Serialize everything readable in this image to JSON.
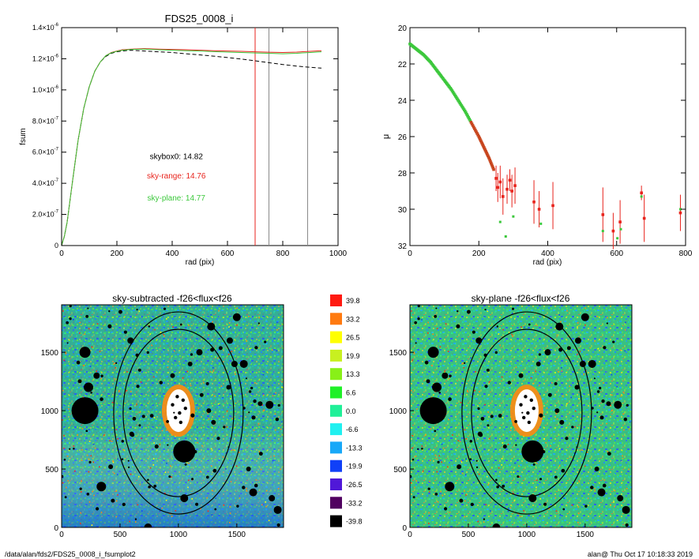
{
  "footer": {
    "path": "/data/alan/fds2/FDS25_0008_i_fsumplot2",
    "stamp": "alan@  Thu Oct 17 10:18:33 2019"
  },
  "chart_data": [
    {
      "type": "line",
      "title": "FDS25_0008_i",
      "xlabel": "rad (pix)",
      "ylabel": "fsum",
      "xlim": [
        0,
        1000
      ],
      "ylim": [
        0,
        1.4e-06
      ],
      "x_ticks": [
        "0",
        "200",
        "400",
        "600",
        "800",
        "1000"
      ],
      "y_ticks": [
        {
          "mantissa": "0",
          "exp": ""
        },
        {
          "mantissa": "2.0×10",
          "exp": "-7"
        },
        {
          "mantissa": "4.0×10",
          "exp": "-7"
        },
        {
          "mantissa": "6.0×10",
          "exp": "-7"
        },
        {
          "mantissa": "8.0×10",
          "exp": "-7"
        },
        {
          "mantissa": "1.0×10",
          "exp": "-6"
        },
        {
          "mantissa": "1.2×10",
          "exp": "-6"
        },
        {
          "mantissa": "1.4×10",
          "exp": "-6"
        }
      ],
      "x": [
        0,
        10,
        20,
        40,
        60,
        80,
        100,
        120,
        140,
        160,
        180,
        200,
        220,
        250,
        300,
        350,
        400,
        450,
        500,
        550,
        600,
        650,
        700,
        750,
        800,
        850,
        900,
        940
      ],
      "series": [
        {
          "color": "#000000",
          "style": "dashed",
          "values": [
            0,
            6e-08,
            1.5e-07,
            4.2e-07,
            6.8e-07,
            8.8e-07,
            1.02e-06,
            1.12e-06,
            1.18e-06,
            1.215e-06,
            1.235e-06,
            1.245e-06,
            1.25e-06,
            1.255e-06,
            1.25e-06,
            1.245e-06,
            1.24e-06,
            1.232e-06,
            1.225e-06,
            1.217e-06,
            1.208e-06,
            1.198e-06,
            1.187e-06,
            1.175e-06,
            1.163e-06,
            1.153e-06,
            1.145e-06,
            1.14e-06
          ]
        },
        {
          "color": "#e8231c",
          "style": "solid",
          "values": [
            0,
            6e-08,
            1.5e-07,
            4.2e-07,
            6.8e-07,
            8.8e-07,
            1.02e-06,
            1.12e-06,
            1.18e-06,
            1.22e-06,
            1.24e-06,
            1.25e-06,
            1.258e-06,
            1.262e-06,
            1.265e-06,
            1.262e-06,
            1.26e-06,
            1.258e-06,
            1.255e-06,
            1.252e-06,
            1.25e-06,
            1.248e-06,
            1.245e-06,
            1.242e-06,
            1.24e-06,
            1.243e-06,
            1.248e-06,
            1.252e-06
          ]
        },
        {
          "color": "#3cc83c",
          "style": "solid",
          "values": [
            0,
            6e-08,
            1.5e-07,
            4.2e-07,
            6.8e-07,
            8.8e-07,
            1.02e-06,
            1.12e-06,
            1.18e-06,
            1.22e-06,
            1.238e-06,
            1.248e-06,
            1.255e-06,
            1.26e-06,
            1.262e-06,
            1.258e-06,
            1.255e-06,
            1.252e-06,
            1.25e-06,
            1.246e-06,
            1.243e-06,
            1.24e-06,
            1.237e-06,
            1.235e-06,
            1.232e-06,
            1.235e-06,
            1.24e-06,
            1.245e-06
          ]
        }
      ],
      "vlines": [
        {
          "x": 700,
          "color": "#e8231c"
        },
        {
          "x": 750,
          "color": "#8a8a8a"
        },
        {
          "x": 890,
          "color": "#8a8a8a"
        }
      ],
      "annotations": [
        {
          "text": "skybox0: 14.82",
          "color": "#000000",
          "x": 415,
          "y": 5.55e-07
        },
        {
          "text": "sky-range: 14.76",
          "color": "#e8231c",
          "x": 415,
          "y": 4.3e-07
        },
        {
          "text": "sky-plane: 14.77",
          "color": "#3cc83c",
          "x": 415,
          "y": 2.9e-07
        }
      ]
    },
    {
      "type": "scatter",
      "xlabel": "rad (pix)",
      "ylabel": "μ",
      "xlim": [
        0,
        800
      ],
      "ylim": [
        32,
        20
      ],
      "x_ticks": [
        "0",
        "200",
        "400",
        "600",
        "800"
      ],
      "y_ticks": [
        "20",
        "22",
        "24",
        "26",
        "28",
        "30",
        "32"
      ],
      "profile_points": [
        [
          0,
          20.9
        ],
        [
          20,
          21.2
        ],
        [
          40,
          21.5
        ],
        [
          60,
          21.9
        ],
        [
          80,
          22.4
        ],
        [
          100,
          22.9
        ],
        [
          120,
          23.4
        ],
        [
          140,
          24.0
        ],
        [
          160,
          24.6
        ],
        [
          180,
          25.3
        ],
        [
          200,
          26.0
        ],
        [
          215,
          26.6
        ],
        [
          230,
          27.2
        ],
        [
          245,
          27.9
        ]
      ],
      "outer_points": [
        {
          "x": 250,
          "y": 28.3,
          "err": 0.7
        },
        {
          "x": 255,
          "y": 28.8,
          "err": 0.8
        },
        {
          "x": 262,
          "y": 28.5,
          "err": 0.9
        },
        {
          "x": 270,
          "y": 29.3,
          "err": 1.0
        },
        {
          "x": 282,
          "y": 28.9,
          "err": 0.8
        },
        {
          "x": 290,
          "y": 28.4,
          "err": 0.6
        },
        {
          "x": 296,
          "y": 29.0,
          "err": 0.9
        },
        {
          "x": 305,
          "y": 28.7,
          "err": 1.0
        },
        {
          "x": 360,
          "y": 29.6,
          "err": 1.2
        },
        {
          "x": 375,
          "y": 30.0,
          "err": 1.0
        },
        {
          "x": 415,
          "y": 29.8,
          "err": 1.3
        },
        {
          "x": 560,
          "y": 30.3,
          "err": 1.5
        },
        {
          "x": 590,
          "y": 31.2,
          "err": 1.0
        },
        {
          "x": 610,
          "y": 30.7,
          "err": 1.2
        },
        {
          "x": 672,
          "y": 29.1,
          "err": 0.4
        },
        {
          "x": 680,
          "y": 30.5,
          "err": 1.3
        },
        {
          "x": 785,
          "y": 30.2,
          "err": 1.0
        }
      ],
      "green_scatter": [
        [
          262,
          30.7
        ],
        [
          278,
          31.5
        ],
        [
          300,
          30.4
        ],
        [
          380,
          30.8
        ],
        [
          560,
          31.2
        ],
        [
          602,
          31.6
        ],
        [
          612,
          31.1
        ],
        [
          672,
          29.3
        ],
        [
          785,
          30.0
        ]
      ]
    },
    {
      "type": "heatmap",
      "title": "sky-subtracted -f26<flux<f26",
      "xlim": [
        0,
        1900
      ],
      "ylim": [
        0,
        1900
      ],
      "x_ticks": [
        "0",
        "500",
        "1000",
        "1500"
      ],
      "y_ticks": [
        "0",
        "500",
        "1000",
        "1500"
      ]
    },
    {
      "type": "heatmap",
      "title": "sky-plane -f26<flux<f26",
      "xlim": [
        0,
        1900
      ],
      "ylim": [
        0,
        1900
      ],
      "x_ticks": [
        "0",
        "500",
        "1000",
        "1500"
      ],
      "y_ticks": [
        "0",
        "500",
        "1000",
        "1500"
      ]
    },
    {
      "type": "table",
      "legend_levels": [
        {
          "label": "39.8",
          "color": "#ff1a10"
        },
        {
          "label": "33.2",
          "color": "#ff7a10"
        },
        {
          "label": "26.5",
          "color": "#ffff00"
        },
        {
          "label": "19.9",
          "color": "#c8f020"
        },
        {
          "label": "13.3",
          "color": "#88f018"
        },
        {
          "label": "6.6",
          "color": "#20f028"
        },
        {
          "label": "0.0",
          "color": "#20f098"
        },
        {
          "label": "-6.6",
          "color": "#20f0f0"
        },
        {
          "label": "-13.3",
          "color": "#18a8f8"
        },
        {
          "label": "-19.9",
          "color": "#1040f8"
        },
        {
          "label": "-26.5",
          "color": "#5018d8"
        },
        {
          "label": "-33.2",
          "color": "#500060"
        },
        {
          "label": "-39.8",
          "color": "#000000"
        }
      ]
    }
  ]
}
